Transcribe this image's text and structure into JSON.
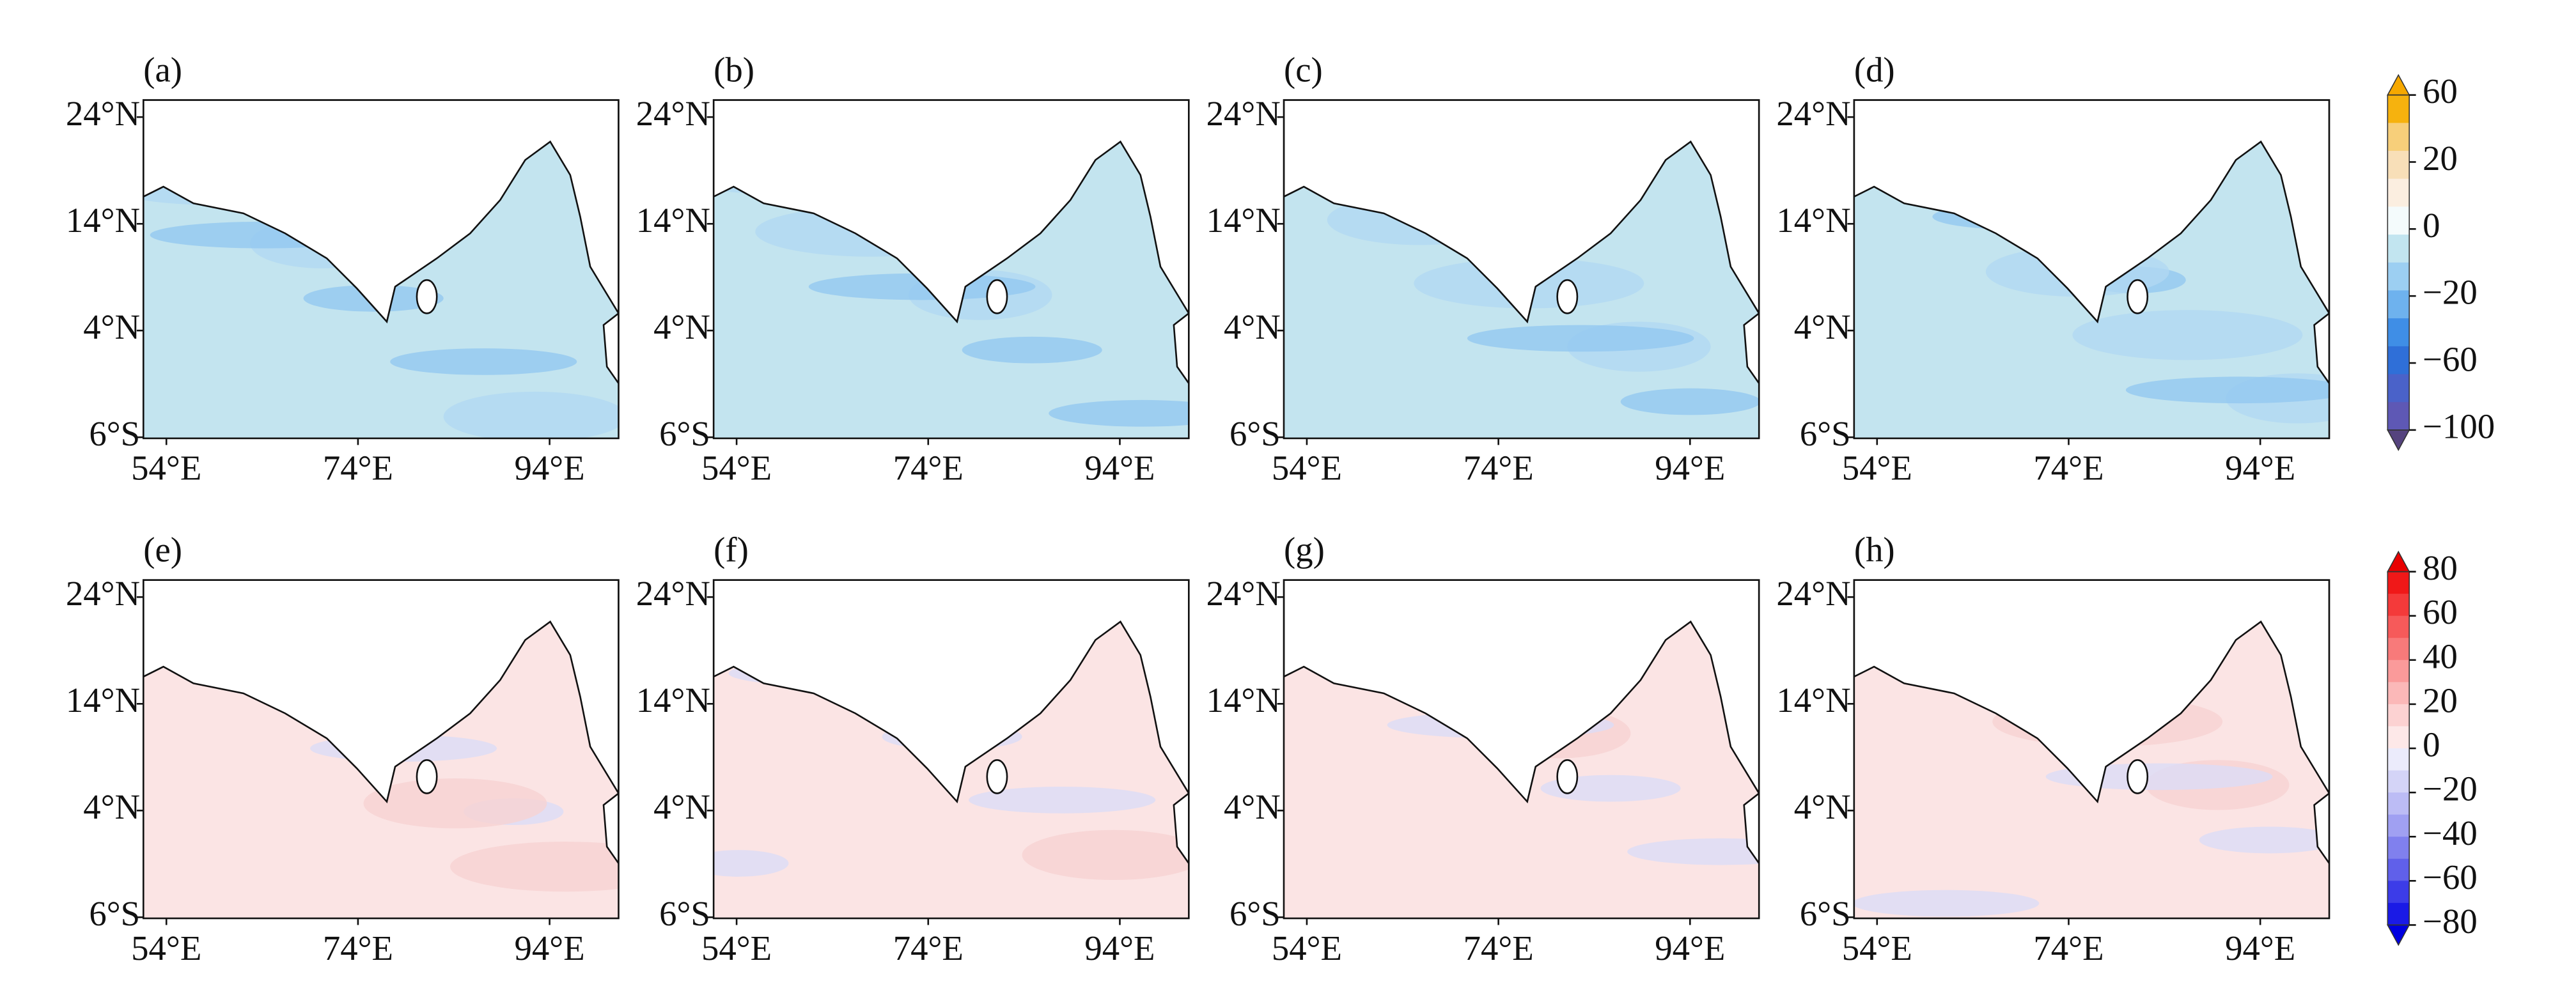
{
  "panels": [
    {
      "label": "(a)",
      "row": 0
    },
    {
      "label": "(b)",
      "row": 0
    },
    {
      "label": "(c)",
      "row": 0
    },
    {
      "label": "(d)",
      "row": 0
    },
    {
      "label": "(e)",
      "row": 1
    },
    {
      "label": "(f)",
      "row": 1
    },
    {
      "label": "(g)",
      "row": 1
    },
    {
      "label": "(h)",
      "row": 1
    }
  ],
  "xlim": [
    51.6,
    101.2
  ],
  "ylim": [
    -6.1,
    25.6
  ],
  "xticks": [
    {
      "value": 54,
      "label": "54°E"
    },
    {
      "value": 74,
      "label": "74°E"
    },
    {
      "value": 94,
      "label": "94°E"
    }
  ],
  "yticks": [
    {
      "value": 24,
      "label": "24°N"
    },
    {
      "value": 14,
      "label": "14°N"
    },
    {
      "value": 4,
      "label": "4°N"
    },
    {
      "value": -6,
      "label": "6°S"
    }
  ],
  "colorbars": [
    {
      "row": 0,
      "ticks": [
        60,
        20,
        0,
        {
          "value": -20,
          "label": "−20"
        },
        {
          "value": -60,
          "label": "−60"
        },
        {
          "value": -100,
          "label": "−100"
        }
      ],
      "colors": [
        "#f6b20e",
        "#f7cf7a",
        "#f8dfb8",
        "#fbeee0",
        "#f4fbfc",
        "#c2e5f0",
        "#9ccff2",
        "#6eb2ee",
        "#3f8ee6",
        "#2f6fd8",
        "#4a62c9",
        "#5e58b5"
      ],
      "extend": [
        "#f6a800",
        "#55437e"
      ]
    },
    {
      "row": 1,
      "ticks": [
        80,
        60,
        40,
        20,
        0,
        {
          "value": -20,
          "label": "−20"
        },
        {
          "value": -40,
          "label": "−40"
        },
        {
          "value": -60,
          "label": "−60"
        },
        {
          "value": -80,
          "label": "−80"
        }
      ],
      "colors": [
        "#f01818",
        "#f43a3a",
        "#f65a5a",
        "#f87a7a",
        "#fa9a9a",
        "#fbb8b8",
        "#fcd2d2",
        "#fde8e8",
        "#ebebfb",
        "#d4d4f7",
        "#bcbcf5",
        "#a0a0f2",
        "#8080ee",
        "#6060ea",
        "#3c3ce8",
        "#1a1ae6"
      ],
      "extend": [
        "#e80000",
        "#0000e0"
      ]
    }
  ]
}
